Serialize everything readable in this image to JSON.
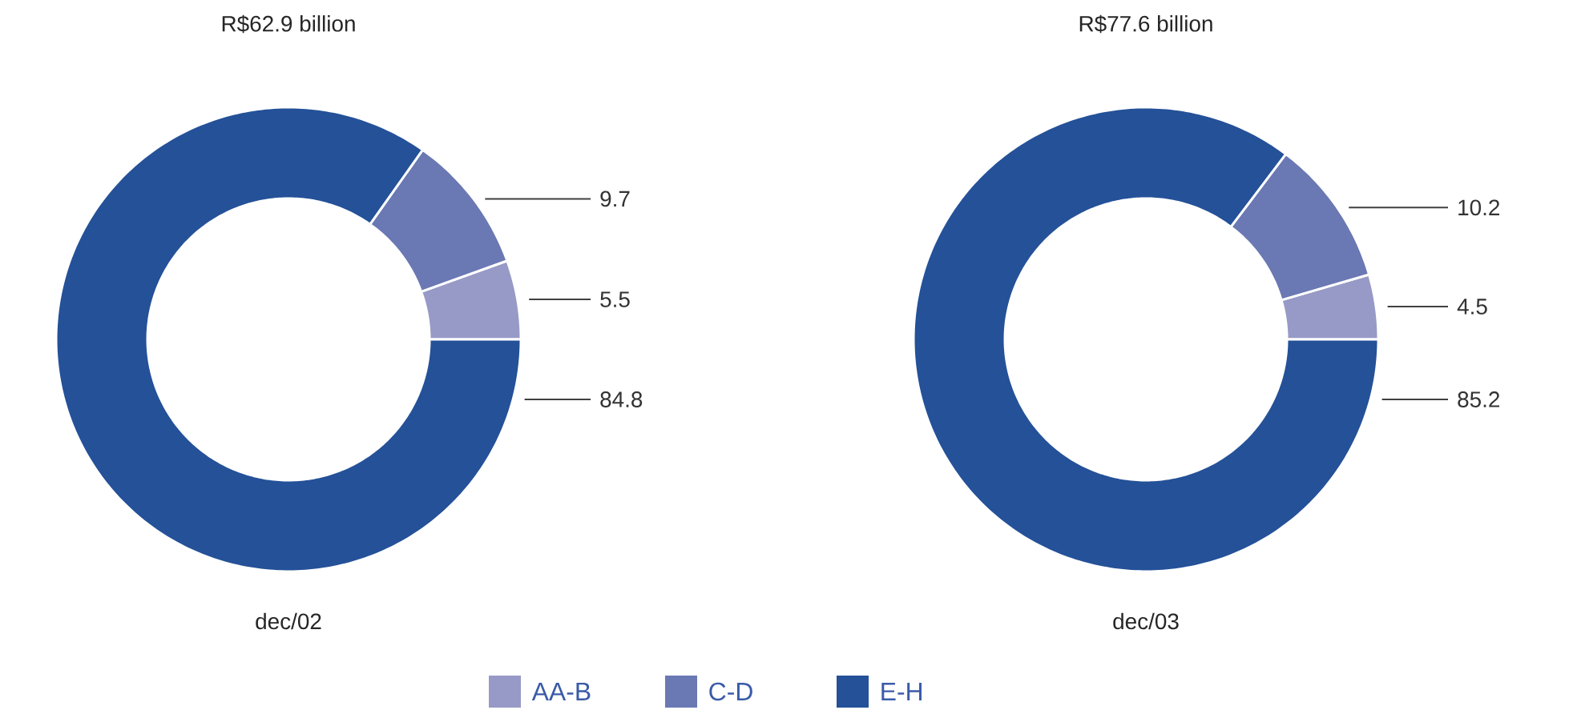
{
  "chart_data": [
    {
      "type": "donut",
      "title": "R$62.9 billion",
      "xlabel": "dec/02",
      "categories": [
        "AA-B",
        "C-D",
        "E-H"
      ],
      "values": [
        5.5,
        9.7,
        84.8
      ],
      "colors": [
        "#979ac6",
        "#6a78b3",
        "#245198"
      ],
      "data_labels": true,
      "legend": "bottom"
    },
    {
      "type": "donut",
      "title": "R$77.6 billion",
      "xlabel": "dec/03",
      "categories": [
        null,
        null,
        null
      ],
      "values": [
        4.5,
        10.2,
        85.2
      ],
      "colors": [
        "#979ac6",
        "#6a78b3",
        "#245198"
      ],
      "data_labels": true
    }
  ]
}
